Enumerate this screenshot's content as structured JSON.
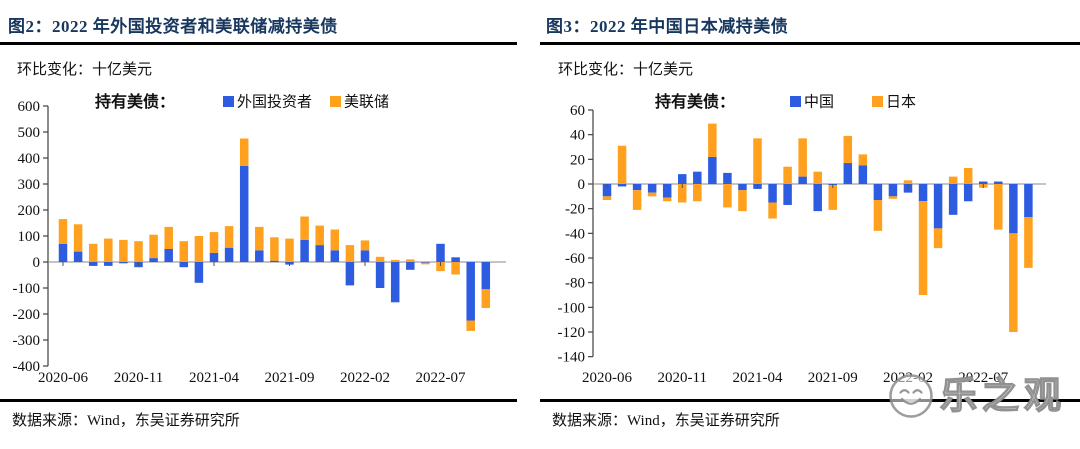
{
  "watermark": {
    "text": "乐之观",
    "logo": "smiley-face-logo"
  },
  "chart_data": [
    {
      "id": "figure-2",
      "type": "bar",
      "stacked": true,
      "title": "图2：2022 年外国投资者和美联储减持美债",
      "subtitle": "环比变化：十亿美元",
      "legend_title": "持有美债：",
      "legend_position": "top",
      "grid": false,
      "source": "数据来源：Wind，东吴证券研究所",
      "categories": [
        "2020-06",
        "2020-07",
        "2020-08",
        "2020-09",
        "2020-10",
        "2020-11",
        "2020-12",
        "2021-01",
        "2021-02",
        "2021-03",
        "2021-04",
        "2021-05",
        "2021-06",
        "2021-07",
        "2021-08",
        "2021-09",
        "2021-10",
        "2021-11",
        "2021-12",
        "2022-01",
        "2022-02",
        "2022-03",
        "2022-04",
        "2022-05",
        "2022-06",
        "2022-07",
        "2022-08",
        "2022-09",
        "2022-10"
      ],
      "series": [
        {
          "name": "外国投资者",
          "color": "#2e5ce0",
          "values": [
            70,
            40,
            -15,
            -15,
            -5,
            -20,
            15,
            50,
            -20,
            -80,
            35,
            55,
            370,
            45,
            5,
            -10,
            85,
            65,
            45,
            -90,
            45,
            -100,
            -155,
            -30,
            -3,
            70,
            18,
            -225,
            -105
          ]
        },
        {
          "name": "美联储",
          "color": "#ffa01e",
          "values": [
            95,
            105,
            70,
            90,
            85,
            80,
            90,
            85,
            80,
            100,
            80,
            83,
            105,
            90,
            90,
            90,
            90,
            75,
            80,
            65,
            38,
            20,
            8,
            10,
            -6,
            -35,
            -48,
            -40,
            -72
          ]
        }
      ],
      "ylim": [
        -400,
        600
      ],
      "yticks": [
        600,
        500,
        400,
        300,
        200,
        100,
        0,
        -100,
        -200,
        -300,
        -400
      ],
      "xtick_labels": [
        "2020-06",
        "2020-11",
        "2021-04",
        "2021-09",
        "2022-02",
        "2022-07"
      ],
      "xtick_indices": [
        0,
        5,
        10,
        15,
        20,
        25
      ]
    },
    {
      "id": "figure-3",
      "type": "bar",
      "stacked": true,
      "title": "图3：2022 年中国日本减持美债",
      "subtitle": "环比变化：十亿美元",
      "legend_title": "持有美债：",
      "legend_position": "top",
      "grid": false,
      "source": "数据来源：Wind，东吴证券研究所",
      "categories": [
        "2020-06",
        "2020-07",
        "2020-08",
        "2020-09",
        "2020-10",
        "2020-11",
        "2020-12",
        "2021-01",
        "2021-02",
        "2021-03",
        "2021-04",
        "2021-05",
        "2021-06",
        "2021-07",
        "2021-08",
        "2021-09",
        "2021-10",
        "2021-11",
        "2021-12",
        "2022-01",
        "2022-02",
        "2022-03",
        "2022-04",
        "2022-05",
        "2022-06",
        "2022-07",
        "2022-08",
        "2022-09",
        "2022-10"
      ],
      "series": [
        {
          "name": "中国",
          "color": "#2e5ce0",
          "values": [
            -10,
            -2,
            -5,
            -7,
            -11,
            8,
            10,
            22,
            9,
            -5,
            -4,
            -15,
            -17,
            6,
            -22,
            -1,
            17,
            15,
            -13,
            -10,
            -7,
            -14,
            -36,
            -25,
            -14,
            2,
            2,
            -40,
            -27
          ]
        },
        {
          "name": "日本",
          "color": "#ffa01e",
          "values": [
            -3,
            31,
            -16,
            -3,
            -3,
            -15,
            -14,
            27,
            -19,
            -17,
            37,
            -13,
            14,
            31,
            10,
            -20,
            22,
            9,
            -25,
            -2,
            3,
            -76,
            -16,
            6,
            13,
            -3,
            -37,
            -80,
            -41
          ]
        }
      ],
      "ylim": [
        -140,
        60
      ],
      "yticks": [
        60,
        40,
        20,
        0,
        -20,
        -40,
        -60,
        -80,
        -100,
        -120,
        -140
      ],
      "xtick_labels": [
        "2020-06",
        "2020-11",
        "2021-04",
        "2021-09",
        "2022-02",
        "2022-07"
      ],
      "xtick_indices": [
        0,
        5,
        10,
        15,
        20,
        25
      ]
    }
  ]
}
